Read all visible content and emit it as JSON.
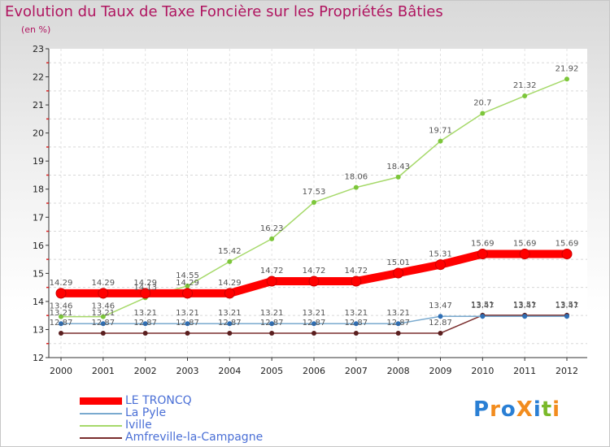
{
  "header": {
    "title": "Evolution du Taux de Taxe Foncière sur les Propriétés Bâties",
    "subtitle": "(en %)"
  },
  "logo": {
    "text": "Proxiti",
    "letters": [
      {
        "ch": "P",
        "color": "#2a7fd4"
      },
      {
        "ch": "r",
        "color": "#f28c1e"
      },
      {
        "ch": "o",
        "color": "#2a7fd4"
      },
      {
        "ch": "X",
        "color": "#f28c1e"
      },
      {
        "ch": "i",
        "color": "#2a7fd4"
      },
      {
        "ch": "t",
        "color": "#7ab929"
      },
      {
        "ch": "i",
        "color": "#f28c1e"
      }
    ]
  },
  "chart_data": {
    "type": "line",
    "title": "Evolution du Taux de Taxe Foncière sur les Propriétés Bâties",
    "ylabel": "(en %)",
    "x": [
      2000,
      2001,
      2002,
      2003,
      2004,
      2005,
      2006,
      2007,
      2008,
      2009,
      2010,
      2011,
      2012
    ],
    "ylim": [
      12,
      23
    ],
    "yticks": [
      12,
      13,
      14,
      15,
      16,
      17,
      18,
      19,
      20,
      21,
      22,
      23
    ],
    "grid": "horizontal dashed at minor positions",
    "legend": "bottom-left",
    "series": [
      {
        "name": "LE TRONCQ",
        "color": "#ff0000",
        "marker": "#ff0000",
        "width": "thick",
        "values": [
          14.29,
          14.29,
          14.29,
          14.29,
          14.29,
          14.72,
          14.72,
          14.72,
          15.01,
          15.31,
          15.69,
          15.69,
          15.69
        ],
        "labels": [
          "14.29",
          "14.29",
          "14.29",
          "14.29",
          "14.29",
          "14.72",
          "14.72",
          "14.72",
          "15.01",
          "15.31",
          "15.69",
          "15.69",
          "15.69"
        ]
      },
      {
        "name": "La Pyle",
        "color": "#7aaacf",
        "marker": "#2f6fb5",
        "width": "thin",
        "values": [
          13.21,
          13.21,
          13.21,
          13.21,
          13.21,
          13.21,
          13.21,
          13.21,
          13.21,
          13.47,
          13.47,
          13.47,
          13.47
        ],
        "labels": [
          "13.21",
          "13.21",
          "13.21",
          "13.21",
          "13.21",
          "13.21",
          "13.21",
          "13.21",
          "13.21",
          "13.47",
          "13.47",
          "13.47",
          "13.47"
        ]
      },
      {
        "name": "Iville",
        "color": "#a6d96a",
        "marker": "#7cc63a",
        "width": "thin",
        "values": [
          13.46,
          13.46,
          14.13,
          14.55,
          15.42,
          16.23,
          17.53,
          18.06,
          18.43,
          19.71,
          20.7,
          21.32,
          21.92
        ],
        "labels": [
          "13.46",
          "13.46",
          "14.13",
          "14.55",
          "15.42",
          "16.23",
          "17.53",
          "18.06",
          "18.43",
          "19.71",
          "20.7",
          "21.32",
          "21.92"
        ]
      },
      {
        "name": "Amfreville-la-Campagne",
        "color": "#7a2e2e",
        "marker": "#5a1e1e",
        "width": "thin",
        "values": [
          12.87,
          12.87,
          12.87,
          12.87,
          12.87,
          12.87,
          12.87,
          12.87,
          12.87,
          12.87,
          13.51,
          13.51,
          13.51
        ],
        "labels": [
          "12.87",
          "12.87",
          "12.87",
          "12.87",
          "12.87",
          "12.87",
          "12.87",
          "12.87",
          "12.87",
          "12.87",
          "13.51",
          "13.51",
          "13.51"
        ]
      }
    ]
  }
}
